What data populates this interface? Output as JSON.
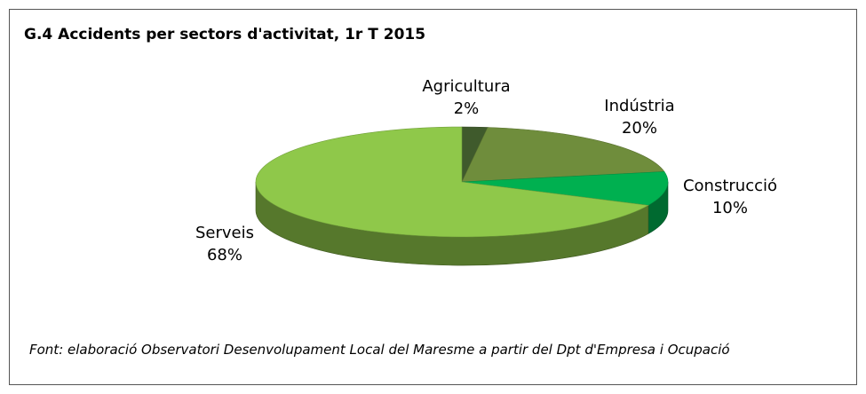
{
  "chart_data": {
    "type": "pie",
    "title": "G.4 Accidents per sectors d'activitat, 1r T 2015",
    "categories": [
      "Agricultura",
      "Indústria",
      "Construcció",
      "Serveis"
    ],
    "values": [
      2,
      20,
      10,
      68
    ],
    "value_labels": [
      "2%",
      "20%",
      "10%",
      "68%"
    ],
    "colors": [
      "#3f5a2c",
      "#6f8d3c",
      "#00b050",
      "#8fc84a"
    ],
    "source": "Font: elaboració Observatori Desenvolupament Local del Maresme a partir del Dpt d'Empresa i Ocupació"
  }
}
